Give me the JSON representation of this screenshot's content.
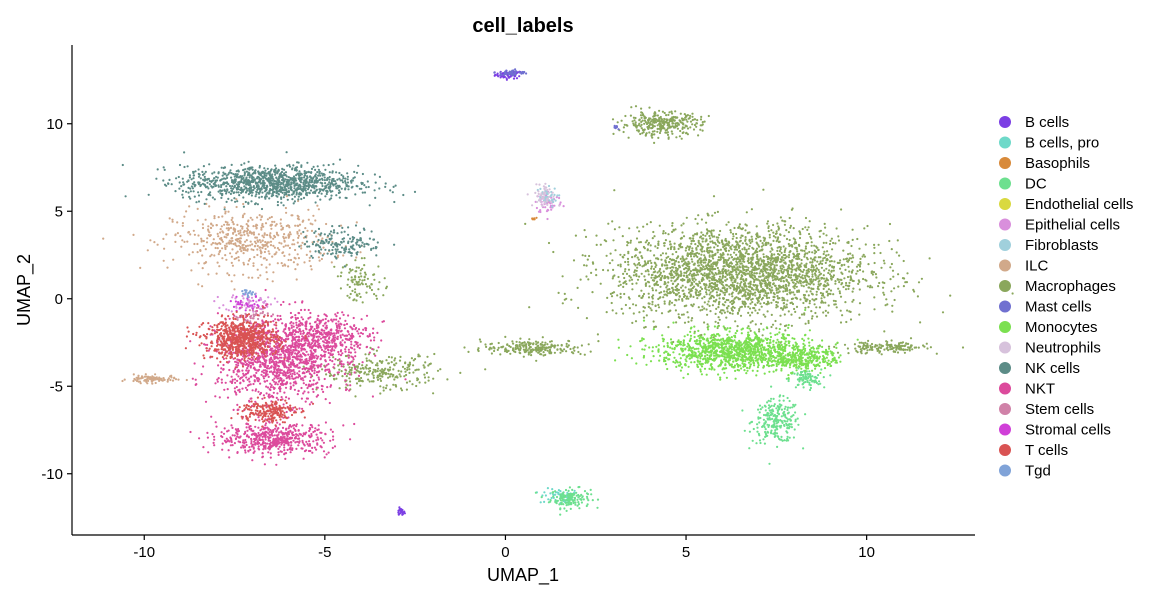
{
  "chart_data": {
    "type": "scatter",
    "title": "cell_labels",
    "xlabel": "UMAP_1",
    "ylabel": "UMAP_2",
    "xlim": [
      -12,
      13
    ],
    "ylim": [
      -13.5,
      14.5
    ],
    "xticks": [
      -10,
      -5,
      0,
      5,
      10
    ],
    "yticks": [
      -10,
      -5,
      0,
      5,
      10
    ],
    "grid": false,
    "legend_position": "right",
    "series": [
      {
        "name": "B cells",
        "color": "#7B3FE4",
        "clusters": [
          [
            0.1,
            12.8,
            0.35,
            0.2,
            60
          ],
          [
            -2.9,
            -12.2,
            0.1,
            0.2,
            20
          ]
        ]
      },
      {
        "name": "B cells, pro",
        "color": "#6ED9C9",
        "clusters": [
          [
            1.5,
            -11.3,
            0.5,
            0.4,
            60
          ]
        ]
      },
      {
        "name": "Basophils",
        "color": "#D88A3A",
        "clusters": [
          [
            0.8,
            4.6,
            0.1,
            0.1,
            6
          ]
        ]
      },
      {
        "name": "DC",
        "color": "#6DE08F",
        "clusters": [
          [
            1.8,
            -11.4,
            0.5,
            0.5,
            140
          ],
          [
            7.5,
            -7.0,
            0.6,
            1.1,
            240
          ],
          [
            8.3,
            -4.6,
            0.4,
            0.5,
            90
          ]
        ]
      },
      {
        "name": "Endothelial cells",
        "color": "#D9D940",
        "clusters": [
          [
            1.2,
            5.5,
            0.1,
            0.1,
            4
          ]
        ]
      },
      {
        "name": "Epithelial cells",
        "color": "#D98FDC",
        "clusters": [
          [
            1.2,
            5.5,
            0.35,
            0.6,
            60
          ],
          [
            -7.1,
            -0.2,
            0.6,
            0.5,
            60
          ]
        ]
      },
      {
        "name": "Fibroblasts",
        "color": "#A0D0DC",
        "clusters": [
          [
            1.1,
            5.8,
            0.3,
            0.5,
            40
          ]
        ]
      },
      {
        "name": "ILC",
        "color": "#D1A98A",
        "clusters": [
          [
            -7.0,
            3.3,
            2.0,
            1.6,
            520
          ],
          [
            -9.8,
            -4.6,
            0.6,
            0.2,
            90
          ]
        ]
      },
      {
        "name": "Macrophages",
        "color": "#8AA75C",
        "clusters": [
          [
            6.5,
            1.5,
            3.2,
            2.4,
            2600
          ],
          [
            4.3,
            10.0,
            1.0,
            0.6,
            320
          ],
          [
            0.8,
            -2.8,
            1.3,
            0.4,
            220
          ],
          [
            -3.5,
            -4.2,
            1.5,
            0.9,
            260
          ],
          [
            10.5,
            -2.8,
            1.1,
            0.3,
            160
          ],
          [
            -4.0,
            1.0,
            0.6,
            1.0,
            90
          ]
        ]
      },
      {
        "name": "Mast cells",
        "color": "#7070D0",
        "clusters": [
          [
            0.2,
            12.9,
            0.3,
            0.15,
            50
          ],
          [
            3.1,
            9.9,
            0.1,
            0.2,
            8
          ]
        ]
      },
      {
        "name": "Monocytes",
        "color": "#7BE050",
        "clusters": [
          [
            6.3,
            -3.0,
            1.9,
            1.0,
            1100
          ],
          [
            8.3,
            -3.4,
            0.8,
            0.6,
            260
          ]
        ]
      },
      {
        "name": "Neutrophils",
        "color": "#D7C2DC",
        "clusters": [
          [
            1.1,
            5.9,
            0.3,
            0.6,
            50
          ]
        ]
      },
      {
        "name": "NK cells",
        "color": "#5C8C87",
        "clusters": [
          [
            -6.5,
            6.6,
            2.2,
            0.9,
            1100
          ],
          [
            -4.5,
            3.2,
            1.0,
            0.8,
            160
          ]
        ]
      },
      {
        "name": "NKT",
        "color": "#DC4A9C",
        "clusters": [
          [
            -6.3,
            -3.5,
            1.5,
            2.2,
            1200
          ],
          [
            -5.0,
            -2.2,
            1.2,
            1.2,
            400
          ],
          [
            -6.4,
            -8.0,
            1.4,
            0.8,
            500
          ]
        ]
      },
      {
        "name": "Stem cells",
        "color": "#D082A8",
        "clusters": [
          [
            -7.0,
            -1.0,
            0.5,
            0.5,
            40
          ]
        ]
      },
      {
        "name": "Stromal cells",
        "color": "#D040D8",
        "clusters": [
          [
            -7.2,
            -0.3,
            0.4,
            0.4,
            30
          ]
        ]
      },
      {
        "name": "T cells",
        "color": "#D95353",
        "clusters": [
          [
            -7.3,
            -2.3,
            0.9,
            1.0,
            700
          ],
          [
            -6.6,
            -6.4,
            0.7,
            0.6,
            200
          ]
        ]
      },
      {
        "name": "Tgd",
        "color": "#80A3D8",
        "clusters": [
          [
            -7.0,
            0.3,
            0.3,
            0.3,
            20
          ]
        ]
      }
    ]
  }
}
